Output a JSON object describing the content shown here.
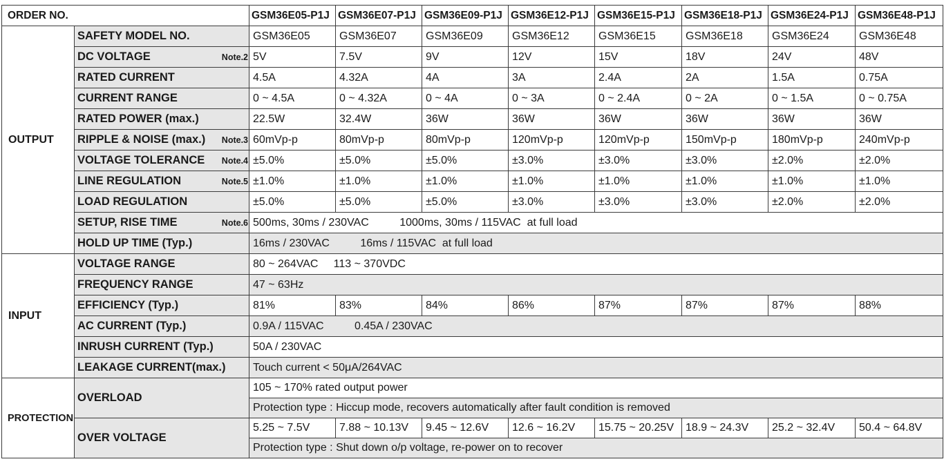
{
  "header": {
    "order_no": "ORDER NO.",
    "models": [
      "GSM36E05-P1J",
      "GSM36E07-P1J",
      "GSM36E09-P1J",
      "GSM36E12-P1J",
      "GSM36E15-P1J",
      "GSM36E18-P1J",
      "GSM36E24-P1J",
      "GSM36E48-P1J"
    ]
  },
  "output": {
    "section": "OUTPUT",
    "safety_model": {
      "label": "SAFETY MODEL NO.",
      "values": [
        "GSM36E05",
        "GSM36E07",
        "GSM36E09",
        "GSM36E12",
        "GSM36E15",
        "GSM36E18",
        "GSM36E24",
        "GSM36E48"
      ]
    },
    "dc_voltage": {
      "label": "DC VOLTAGE",
      "note": "Note.2",
      "values": [
        "5V",
        "7.5V",
        "9V",
        "12V",
        "15V",
        "18V",
        "24V",
        "48V"
      ]
    },
    "rated_current": {
      "label": "RATED CURRENT",
      "values": [
        "4.5A",
        "4.32A",
        "4A",
        "3A",
        "2.4A",
        "2A",
        "1.5A",
        "0.75A"
      ]
    },
    "current_range": {
      "label": "CURRENT RANGE",
      "values": [
        "0 ~ 4.5A",
        "0 ~ 4.32A",
        "0 ~ 4A",
        "0 ~ 3A",
        "0 ~ 2.4A",
        "0 ~ 2A",
        "0 ~ 1.5A",
        "0 ~ 0.75A"
      ]
    },
    "rated_power": {
      "label": "RATED POWER (max.)",
      "values": [
        "22.5W",
        "32.4W",
        "36W",
        "36W",
        "36W",
        "36W",
        "36W",
        "36W"
      ]
    },
    "ripple_noise": {
      "label": "RIPPLE & NOISE (max.)",
      "note": "Note.3",
      "values": [
        "60mVp-p",
        "80mVp-p",
        "80mVp-p",
        "120mVp-p",
        "120mVp-p",
        "150mVp-p",
        "180mVp-p",
        "240mVp-p"
      ]
    },
    "voltage_tolerance": {
      "label": "VOLTAGE TOLERANCE",
      "note": "Note.4",
      "values": [
        "±5.0%",
        "±5.0%",
        "±5.0%",
        "±3.0%",
        "±3.0%",
        "±3.0%",
        "±2.0%",
        "±2.0%"
      ]
    },
    "line_regulation": {
      "label": "LINE REGULATION",
      "note": "Note.5",
      "values": [
        "±1.0%",
        "±1.0%",
        "±1.0%",
        "±1.0%",
        "±1.0%",
        "±1.0%",
        "±1.0%",
        "±1.0%"
      ]
    },
    "load_regulation": {
      "label": "LOAD REGULATION",
      "values": [
        "±5.0%",
        "±5.0%",
        "±5.0%",
        "±3.0%",
        "±3.0%",
        "±3.0%",
        "±2.0%",
        "±2.0%"
      ]
    },
    "setup_rise": {
      "label": "SETUP, RISE TIME",
      "note": "Note.6",
      "value": "500ms, 30ms / 230VAC          1000ms, 30ms / 115VAC  at full load"
    },
    "hold_up": {
      "label": "HOLD UP TIME (Typ.)",
      "value": "16ms / 230VAC          16ms / 115VAC  at full load"
    }
  },
  "input": {
    "section": "INPUT",
    "voltage_range": {
      "label": "VOLTAGE RANGE",
      "value": "80 ~ 264VAC     113 ~ 370VDC"
    },
    "frequency_range": {
      "label": "FREQUENCY RANGE",
      "value": "47 ~ 63Hz"
    },
    "efficiency": {
      "label": "EFFICIENCY (Typ.)",
      "values": [
        "81%",
        "83%",
        "84%",
        "86%",
        "87%",
        "87%",
        "87%",
        "88%"
      ]
    },
    "ac_current": {
      "label": "AC CURRENT (Typ.)",
      "value": "0.9A / 115VAC          0.45A / 230VAC"
    },
    "inrush_current": {
      "label": "INRUSH CURRENT (Typ.)",
      "value": "50A / 230VAC"
    },
    "leakage_current": {
      "label": "LEAKAGE CURRENT(max.)",
      "value": "Touch current < 50μA/264VAC"
    }
  },
  "protection": {
    "section": "PROTECTION",
    "overload": {
      "label": "OVERLOAD",
      "line1": "105 ~ 170%  rated output power",
      "line2": "Protection type : Hiccup mode, recovers automatically after fault condition is removed"
    },
    "over_voltage": {
      "label": "OVER VOLTAGE",
      "values": [
        "5.25 ~ 7.5V",
        "7.88 ~ 10.13V",
        "9.45 ~ 12.6V",
        "12.6 ~ 16.2V",
        "15.75 ~ 20.25V",
        "18.9 ~ 24.3V",
        "25.2 ~ 32.4V",
        "50.4 ~ 64.8V"
      ],
      "line2": "Protection type : Shut down o/p voltage, re-power on to recover"
    }
  }
}
